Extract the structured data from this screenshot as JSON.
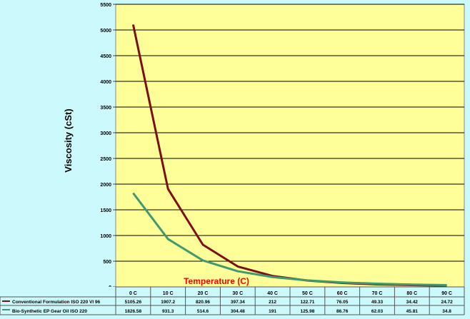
{
  "chart_data": {
    "type": "line",
    "ylabel": "Viscosity (cSt)",
    "xlabel": "Temperature (C)",
    "categories": [
      "0 C",
      "10 C",
      "20 C",
      "30 C",
      "40 C",
      "50 C",
      "60 C",
      "70 C",
      "80 C",
      "90 C"
    ],
    "ylim": [
      0,
      5500
    ],
    "yticks": [
      0,
      500,
      1000,
      1500,
      2000,
      2500,
      3000,
      3500,
      4000,
      4500,
      5000,
      5500
    ],
    "grid": true,
    "series": [
      {
        "name": "Conventional Formulation ISO 220 VI 96",
        "values": [
          5105.26,
          1907.2,
          820.96,
          397.34,
          212,
          122.71,
          76.05,
          49.33,
          34.42,
          24.72
        ],
        "labels": [
          "5105.26",
          "1907.2",
          "820.96",
          "397.34",
          "212",
          "122.71",
          "76.05",
          "49.33",
          "34.42",
          "24.72"
        ],
        "color": "#7b0f14"
      },
      {
        "name": "Bio-Synthetic EP Gear Oil ISO 220",
        "values": [
          1826.58,
          931.3,
          514.6,
          304.48,
          191,
          125.98,
          86.76,
          62.03,
          45.81,
          34.8
        ],
        "labels": [
          "1826.58",
          "931.3",
          "514.6",
          "304.48",
          "191",
          "125.98",
          "86.76",
          "62.03",
          "45.81",
          "34.8"
        ],
        "color": "#3f9a6d"
      }
    ],
    "colors": {
      "plot_background": "#ffff99",
      "page_background": "#ccfafc",
      "xlabel_color": "#ff0000"
    }
  }
}
